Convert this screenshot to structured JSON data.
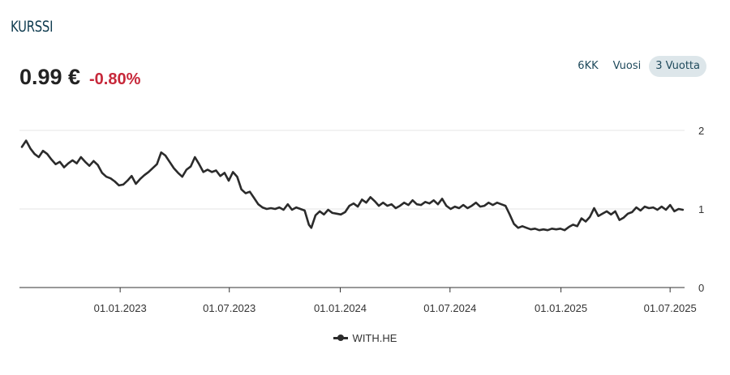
{
  "header": {
    "title": "KURSSI"
  },
  "quote": {
    "price": "0.99 €",
    "change": "-0.80%"
  },
  "range_buttons": [
    {
      "label": "6KK",
      "active": false
    },
    {
      "label": "Vuosi",
      "active": false
    },
    {
      "label": "3 Vuotta",
      "active": true
    }
  ],
  "colors": {
    "line": "#2b2b2b",
    "change_negative": "#c7283a",
    "title": "#0e3b4f",
    "active_range_bg": "#dde6ea"
  },
  "chart_data": {
    "type": "line",
    "ylim": [
      0,
      2
    ],
    "yticks": [
      0,
      1,
      2
    ],
    "xlim": [
      "2022-07-18",
      "2025-07-25"
    ],
    "xticks": [
      {
        "date": "2023-01-01",
        "label": "01.01.2023"
      },
      {
        "date": "2023-07-01",
        "label": "01.07.2023"
      },
      {
        "date": "2024-01-01",
        "label": "01.01.2024"
      },
      {
        "date": "2024-07-01",
        "label": "01.07.2024"
      },
      {
        "date": "2025-01-01",
        "label": "01.01.2025"
      },
      {
        "date": "2025-07-01",
        "label": "01.07.2025"
      }
    ],
    "grid": true,
    "legend_position": "bottom-center",
    "series": [
      {
        "name": "WITH.HE",
        "points": [
          [
            "2022-07-22",
            1.79
          ],
          [
            "2022-07-29",
            1.87
          ],
          [
            "2022-08-05",
            1.77
          ],
          [
            "2022-08-12",
            1.7
          ],
          [
            "2022-08-19",
            1.66
          ],
          [
            "2022-08-26",
            1.74
          ],
          [
            "2022-09-02",
            1.7
          ],
          [
            "2022-09-09",
            1.63
          ],
          [
            "2022-09-16",
            1.57
          ],
          [
            "2022-09-23",
            1.6
          ],
          [
            "2022-09-30",
            1.53
          ],
          [
            "2022-10-07",
            1.58
          ],
          [
            "2022-10-14",
            1.62
          ],
          [
            "2022-10-21",
            1.58
          ],
          [
            "2022-10-28",
            1.66
          ],
          [
            "2022-11-04",
            1.6
          ],
          [
            "2022-11-11",
            1.55
          ],
          [
            "2022-11-18",
            1.61
          ],
          [
            "2022-11-25",
            1.56
          ],
          [
            "2022-12-02",
            1.46
          ],
          [
            "2022-12-09",
            1.41
          ],
          [
            "2022-12-16",
            1.39
          ],
          [
            "2022-12-23",
            1.35
          ],
          [
            "2022-12-30",
            1.3
          ],
          [
            "2023-01-06",
            1.31
          ],
          [
            "2023-01-13",
            1.36
          ],
          [
            "2023-01-20",
            1.42
          ],
          [
            "2023-01-27",
            1.32
          ],
          [
            "2023-02-03",
            1.38
          ],
          [
            "2023-02-10",
            1.43
          ],
          [
            "2023-02-17",
            1.47
          ],
          [
            "2023-02-24",
            1.52
          ],
          [
            "2023-03-03",
            1.57
          ],
          [
            "2023-03-10",
            1.72
          ],
          [
            "2023-03-17",
            1.68
          ],
          [
            "2023-03-24",
            1.6
          ],
          [
            "2023-03-31",
            1.52
          ],
          [
            "2023-04-07",
            1.46
          ],
          [
            "2023-04-14",
            1.41
          ],
          [
            "2023-04-21",
            1.5
          ],
          [
            "2023-04-28",
            1.54
          ],
          [
            "2023-05-05",
            1.66
          ],
          [
            "2023-05-12",
            1.57
          ],
          [
            "2023-05-19",
            1.47
          ],
          [
            "2023-05-26",
            1.5
          ],
          [
            "2023-06-02",
            1.47
          ],
          [
            "2023-06-09",
            1.49
          ],
          [
            "2023-06-16",
            1.42
          ],
          [
            "2023-06-23",
            1.46
          ],
          [
            "2023-06-30",
            1.36
          ],
          [
            "2023-07-07",
            1.47
          ],
          [
            "2023-07-14",
            1.41
          ],
          [
            "2023-07-21",
            1.25
          ],
          [
            "2023-07-28",
            1.2
          ],
          [
            "2023-08-04",
            1.22
          ],
          [
            "2023-08-11",
            1.14
          ],
          [
            "2023-08-18",
            1.06
          ],
          [
            "2023-08-25",
            1.02
          ],
          [
            "2023-09-01",
            1.0
          ],
          [
            "2023-09-08",
            1.01
          ],
          [
            "2023-09-15",
            1.0
          ],
          [
            "2023-09-22",
            1.02
          ],
          [
            "2023-09-29",
            0.99
          ],
          [
            "2023-10-06",
            1.06
          ],
          [
            "2023-10-13",
            0.99
          ],
          [
            "2023-10-20",
            1.02
          ],
          [
            "2023-10-27",
            1.0
          ],
          [
            "2023-11-03",
            0.98
          ],
          [
            "2023-11-10",
            0.8
          ],
          [
            "2023-11-14",
            0.76
          ],
          [
            "2023-11-21",
            0.92
          ],
          [
            "2023-11-28",
            0.97
          ],
          [
            "2023-12-05",
            0.93
          ],
          [
            "2023-12-12",
            0.99
          ],
          [
            "2023-12-19",
            0.95
          ],
          [
            "2023-12-26",
            0.94
          ],
          [
            "2024-01-02",
            0.93
          ],
          [
            "2024-01-09",
            0.96
          ],
          [
            "2024-01-16",
            1.04
          ],
          [
            "2024-01-23",
            1.07
          ],
          [
            "2024-01-30",
            1.03
          ],
          [
            "2024-02-06",
            1.12
          ],
          [
            "2024-02-13",
            1.08
          ],
          [
            "2024-02-20",
            1.15
          ],
          [
            "2024-02-27",
            1.1
          ],
          [
            "2024-03-05",
            1.04
          ],
          [
            "2024-03-12",
            1.08
          ],
          [
            "2024-03-19",
            1.04
          ],
          [
            "2024-03-26",
            1.06
          ],
          [
            "2024-04-02",
            1.01
          ],
          [
            "2024-04-09",
            1.04
          ],
          [
            "2024-04-16",
            1.08
          ],
          [
            "2024-04-23",
            1.05
          ],
          [
            "2024-04-30",
            1.11
          ],
          [
            "2024-05-07",
            1.06
          ],
          [
            "2024-05-14",
            1.05
          ],
          [
            "2024-05-21",
            1.09
          ],
          [
            "2024-05-28",
            1.07
          ],
          [
            "2024-06-04",
            1.11
          ],
          [
            "2024-06-11",
            1.06
          ],
          [
            "2024-06-18",
            1.13
          ],
          [
            "2024-06-25",
            1.04
          ],
          [
            "2024-07-02",
            1.0
          ],
          [
            "2024-07-09",
            1.03
          ],
          [
            "2024-07-16",
            1.01
          ],
          [
            "2024-07-23",
            1.05
          ],
          [
            "2024-07-30",
            1.01
          ],
          [
            "2024-08-06",
            1.04
          ],
          [
            "2024-08-13",
            1.08
          ],
          [
            "2024-08-20",
            1.03
          ],
          [
            "2024-08-27",
            1.04
          ],
          [
            "2024-09-03",
            1.08
          ],
          [
            "2024-09-10",
            1.05
          ],
          [
            "2024-09-17",
            1.08
          ],
          [
            "2024-09-24",
            1.06
          ],
          [
            "2024-10-01",
            1.04
          ],
          [
            "2024-10-08",
            0.93
          ],
          [
            "2024-10-15",
            0.81
          ],
          [
            "2024-10-22",
            0.76
          ],
          [
            "2024-10-29",
            0.78
          ],
          [
            "2024-11-05",
            0.76
          ],
          [
            "2024-11-12",
            0.74
          ],
          [
            "2024-11-19",
            0.75
          ],
          [
            "2024-11-26",
            0.73
          ],
          [
            "2024-12-03",
            0.74
          ],
          [
            "2024-12-10",
            0.73
          ],
          [
            "2024-12-17",
            0.75
          ],
          [
            "2024-12-24",
            0.74
          ],
          [
            "2024-12-31",
            0.75
          ],
          [
            "2025-01-07",
            0.73
          ],
          [
            "2025-01-14",
            0.77
          ],
          [
            "2025-01-21",
            0.8
          ],
          [
            "2025-01-28",
            0.78
          ],
          [
            "2025-02-04",
            0.88
          ],
          [
            "2025-02-11",
            0.84
          ],
          [
            "2025-02-18",
            0.9
          ],
          [
            "2025-02-25",
            1.01
          ],
          [
            "2025-03-04",
            0.91
          ],
          [
            "2025-03-11",
            0.94
          ],
          [
            "2025-03-18",
            0.97
          ],
          [
            "2025-03-25",
            0.93
          ],
          [
            "2025-04-01",
            0.97
          ],
          [
            "2025-04-08",
            0.86
          ],
          [
            "2025-04-15",
            0.89
          ],
          [
            "2025-04-22",
            0.94
          ],
          [
            "2025-04-29",
            0.96
          ],
          [
            "2025-05-06",
            1.02
          ],
          [
            "2025-05-13",
            0.98
          ],
          [
            "2025-05-20",
            1.03
          ],
          [
            "2025-05-27",
            1.01
          ],
          [
            "2025-06-03",
            1.02
          ],
          [
            "2025-06-10",
            0.99
          ],
          [
            "2025-06-17",
            1.03
          ],
          [
            "2025-06-24",
            0.99
          ],
          [
            "2025-07-01",
            1.05
          ],
          [
            "2025-07-08",
            0.97
          ],
          [
            "2025-07-15",
            1.0
          ],
          [
            "2025-07-22",
            0.99
          ]
        ]
      }
    ]
  }
}
